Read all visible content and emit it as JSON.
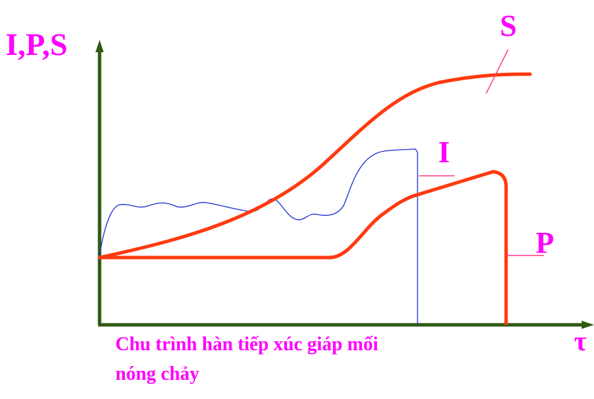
{
  "axis_label_y": "I,P,S",
  "axis_label_x": "τ",
  "curve_labels": {
    "s": "S",
    "i": "I",
    "p": "P"
  },
  "caption": [
    "Chu trình hàn tiếp xúc giáp mối",
    "nóng chảy"
  ]
}
